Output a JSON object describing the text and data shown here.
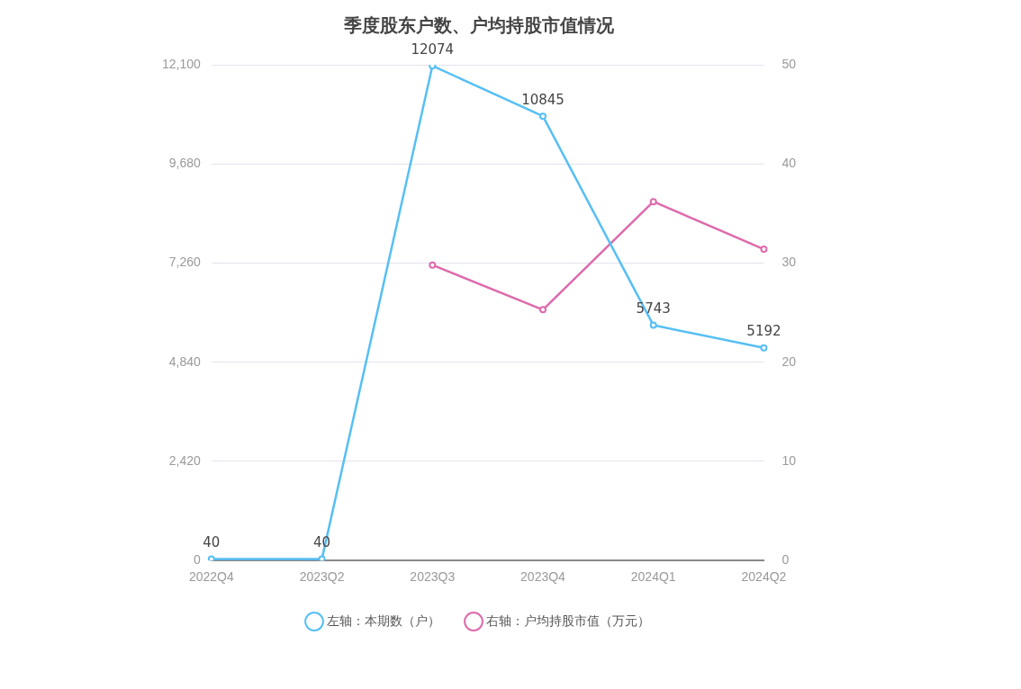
{
  "chart_data": {
    "type": "line",
    "title": "季度股东户数、户均持股市值情况",
    "categories": [
      "2022Q4",
      "2023Q2",
      "2023Q3",
      "2023Q4",
      "2024Q1",
      "2024Q2"
    ],
    "series": [
      {
        "name": "左轴：本期数（户）",
        "color": "#56bff5",
        "values": [
          40,
          40,
          12074,
          10845,
          5743,
          5192
        ],
        "value_labels": [
          "40",
          "40",
          "12074",
          "10845",
          "5743",
          "5192"
        ]
      },
      {
        "name": "右轴：户均持股市值（万元）",
        "color": "#dd6bac",
        "axis": "y2",
        "values": [
          null,
          null,
          29.8,
          25.3,
          36.2,
          31.4
        ]
      }
    ],
    "ylim": [
      0,
      12100
    ],
    "yticks": [
      {
        "value": 0,
        "label": "0"
      },
      {
        "value": 2420,
        "label": "2,420"
      },
      {
        "value": 4840,
        "label": "4,840"
      },
      {
        "value": 7260,
        "label": "7,260"
      },
      {
        "value": 9680,
        "label": "9,680"
      },
      {
        "value": 12100,
        "label": "12,100"
      }
    ],
    "y2lim": [
      0,
      50
    ],
    "y2ticks": [
      0,
      10,
      20,
      30,
      40,
      50
    ],
    "grid": "y",
    "legend": "bottom",
    "marker": "circle",
    "line_style": "solid"
  }
}
